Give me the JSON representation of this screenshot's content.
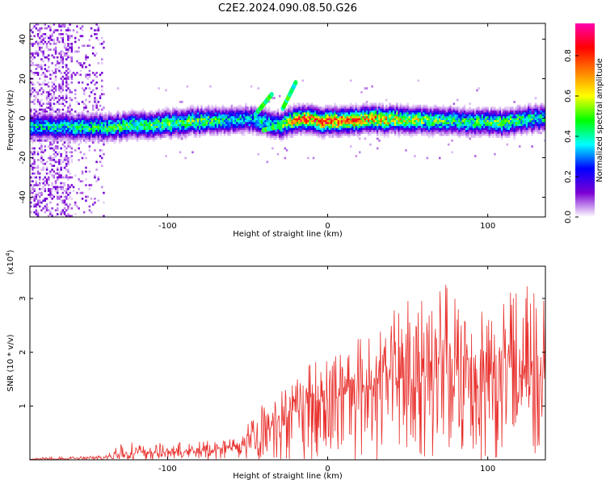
{
  "title": "C2E2.2024.090.08.50.G26",
  "chart_data": [
    {
      "type": "heatmap",
      "xlabel": "Height of straight line (km)",
      "ylabel": "Frequency (Hz)",
      "xlim": [
        -186,
        136
      ],
      "ylim": [
        -50,
        48
      ],
      "x_ticks": [
        -100,
        0,
        100
      ],
      "y_ticks": [
        -40,
        -20,
        0,
        20,
        40
      ],
      "colorbar": {
        "label": "Normalized spectral amplitude",
        "range": [
          0,
          0.96
        ],
        "ticks": [
          0.0,
          0.2,
          0.4,
          0.6,
          0.8
        ],
        "tick_labels": [
          "0.0",
          "0.2",
          "0.4",
          "0.6",
          "0.8"
        ],
        "colormap": [
          "#ffffff",
          "#7b00d4",
          "#0000ff",
          "#00ffff",
          "#00ff00",
          "#ffff00",
          "#ff8000",
          "#ff0000",
          "#ff00b0"
        ]
      },
      "ridge": {
        "description_points_x": [
          -170,
          -140,
          -110,
          -80,
          -50,
          -30,
          -20,
          0,
          40,
          80,
          110,
          136
        ],
        "center_freq": [
          -4,
          -4,
          -3,
          -1,
          0,
          -3,
          0,
          -1,
          0,
          -1,
          -2,
          1
        ],
        "peak_amplitude": [
          0.45,
          0.5,
          0.55,
          0.55,
          0.4,
          0.5,
          0.8,
          0.9,
          0.7,
          0.5,
          0.55,
          0.45
        ]
      }
    },
    {
      "type": "line",
      "xlabel": "Height of straight line (km)",
      "ylabel": "SNR (10 * v/v)",
      "scale_label_base": "(x10",
      "scale_label_exp": "4",
      "scale_label_end": ")",
      "xlim": [
        -186,
        136
      ],
      "ylim": [
        0,
        3.6
      ],
      "x_ticks": [
        -100,
        0,
        100
      ],
      "y_ticks": [
        1,
        2,
        3
      ],
      "series_color": "#e8302c",
      "envelope": {
        "x": [
          -186,
          -140,
          -130,
          -110,
          -80,
          -60,
          -45,
          -35,
          -25,
          -10,
          10,
          30,
          50,
          70,
          90,
          110,
          136
        ],
        "max": [
          0.04,
          0.08,
          0.35,
          0.3,
          0.35,
          0.4,
          0.9,
          1.3,
          1.4,
          2.0,
          2.1,
          2.5,
          3.0,
          3.4,
          3.0,
          3.2,
          3.3
        ],
        "typical": [
          0.01,
          0.03,
          0.1,
          0.12,
          0.15,
          0.2,
          0.4,
          0.6,
          0.8,
          1.0,
          1.2,
          1.4,
          1.5,
          1.6,
          1.5,
          1.5,
          1.5
        ]
      }
    }
  ]
}
